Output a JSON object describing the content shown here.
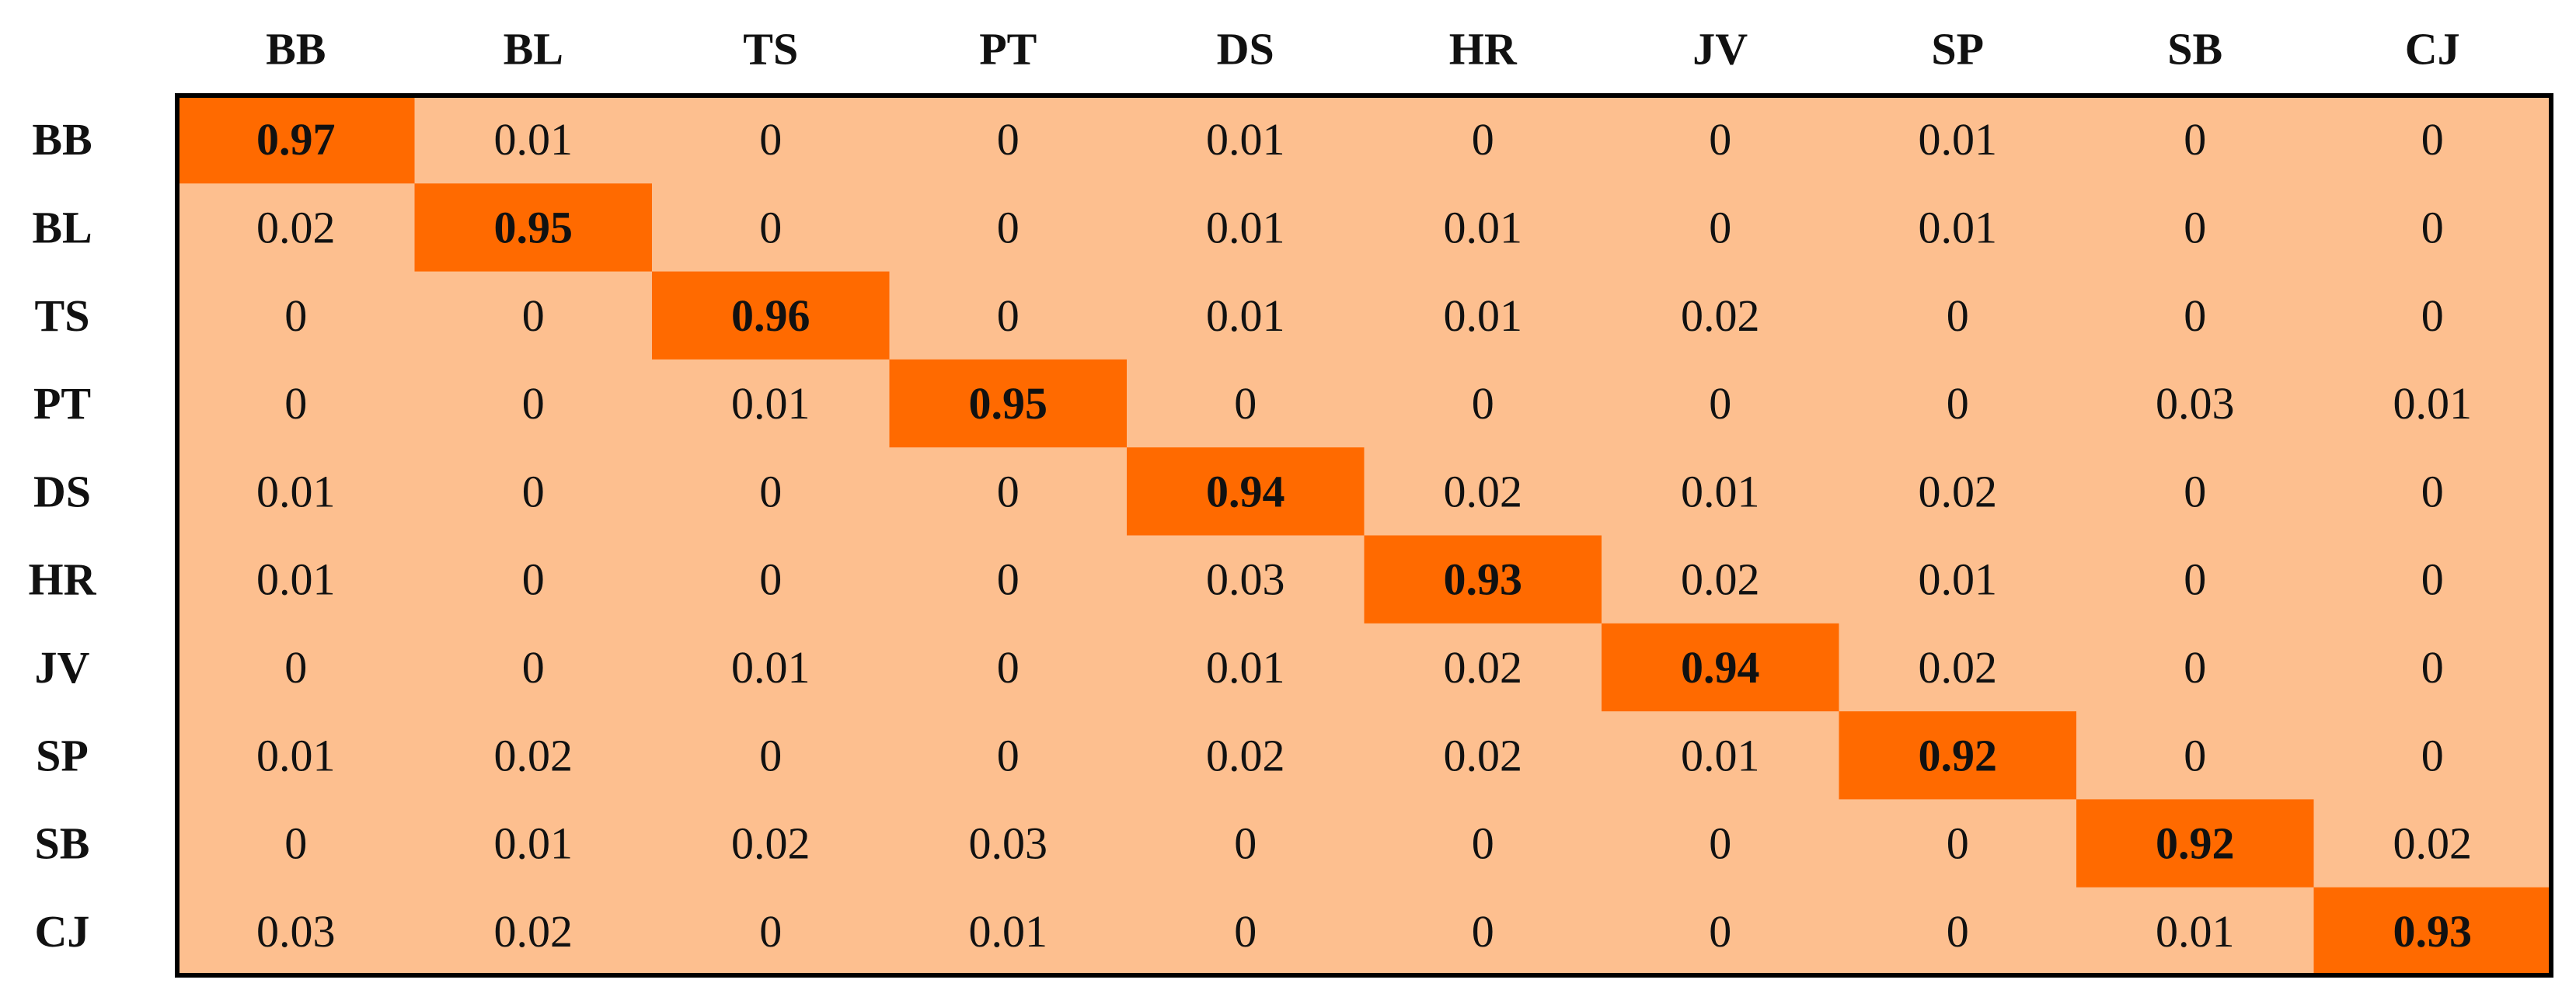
{
  "table": {
    "columns": [
      "BB",
      "BL",
      "TS",
      "PT",
      "DS",
      "HR",
      "JV",
      "SP",
      "SB",
      "CJ"
    ],
    "rows": [
      {
        "label": "BB",
        "cells": [
          0.97,
          0.01,
          0,
          0,
          0.01,
          0,
          0,
          0.01,
          0,
          0
        ]
      },
      {
        "label": "BL",
        "cells": [
          0.02,
          0.95,
          0,
          0,
          0.01,
          0.01,
          0,
          0.01,
          0,
          0
        ]
      },
      {
        "label": "TS",
        "cells": [
          0,
          0,
          0.96,
          0,
          0.01,
          0.01,
          0.02,
          0,
          0,
          0
        ]
      },
      {
        "label": "PT",
        "cells": [
          0,
          0,
          0.01,
          0.95,
          0,
          0,
          0,
          0,
          0.03,
          0.01
        ]
      },
      {
        "label": "DS",
        "cells": [
          0.01,
          0,
          0,
          0,
          0.94,
          0.02,
          0.01,
          0.02,
          0,
          0
        ]
      },
      {
        "label": "HR",
        "cells": [
          0.01,
          0,
          0,
          0,
          0.03,
          0.93,
          0.02,
          0.01,
          0,
          0
        ]
      },
      {
        "label": "JV",
        "cells": [
          0,
          0,
          0.01,
          0,
          0.01,
          0.02,
          0.94,
          0.02,
          0,
          0
        ]
      },
      {
        "label": "SP",
        "cells": [
          0.01,
          0.02,
          0,
          0,
          0.02,
          0.02,
          0.01,
          0.92,
          0,
          0
        ]
      },
      {
        "label": "SB",
        "cells": [
          0,
          0.01,
          0.02,
          0.03,
          0,
          0,
          0,
          0,
          0.92,
          0.02
        ]
      },
      {
        "label": "CJ",
        "cells": [
          0.03,
          0.02,
          0,
          0.01,
          0,
          0,
          0,
          0,
          0.01,
          0.93
        ]
      }
    ],
    "cell_color": "#fdbf8f",
    "highlight_color": "#ff6a00"
  }
}
